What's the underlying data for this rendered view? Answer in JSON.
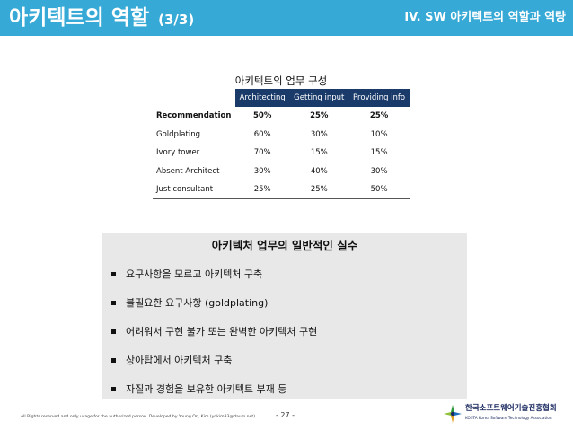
{
  "header": {
    "title": "아키텍트의 역할",
    "page_indicator": "(3/3)",
    "section": "IV. SW 아키텍트의 역할과 역량",
    "bar_color": "#36a9d6"
  },
  "role_table": {
    "caption": "아키텍트의 업무 구성",
    "columns": [
      "Architecting",
      "Getting input",
      "Providing info"
    ],
    "rows": [
      {
        "label": "Recommendation",
        "values": [
          "50%",
          "25%",
          "25%"
        ],
        "bold": true
      },
      {
        "label": "Goldplating",
        "values": [
          "60%",
          "30%",
          "10%"
        ],
        "bold": false
      },
      {
        "label": "Ivory tower",
        "values": [
          "70%",
          "15%",
          "15%"
        ],
        "bold": false
      },
      {
        "label": "Absent Architect",
        "values": [
          "30%",
          "40%",
          "30%"
        ],
        "bold": false
      },
      {
        "label": "Just consultant",
        "values": [
          "25%",
          "25%",
          "50%"
        ],
        "bold": false
      }
    ],
    "header_color": "#1a3a6a"
  },
  "mistakes": {
    "title": "아키텍처 업무의 일반적인 실수",
    "items": [
      "요구사항을 모르고 아키텍처 구축",
      "불필요한 요구사항 (goldplating)",
      "어려워서 구현 불가 또는 완벽한 아키텍처 구현",
      "상아탑에서 아키텍처 구축",
      "자질과 경험을 보유한 아키텍트 부재 등"
    ]
  },
  "footer": {
    "note": "All Rights reserved and only usage for the authorized person. Developed by Young On, Kim (yokim33@daum.net)",
    "page_number": "- 27 -"
  },
  "logo": {
    "icon": "kosta-logo-icon",
    "name_ko": "한국소프트웨어기술진흥협회",
    "name_en": "KOSTA  Korea Software Technology Association"
  }
}
